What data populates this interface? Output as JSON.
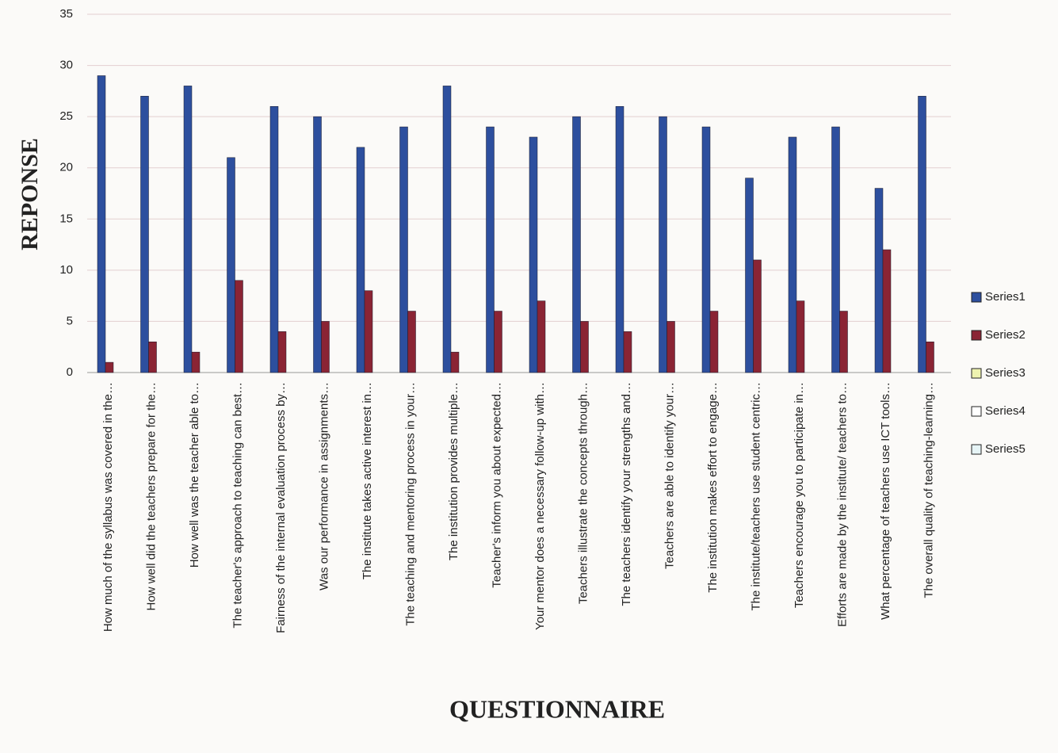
{
  "chart_data": {
    "type": "bar",
    "xlabel": "QUESTIONNAIRE",
    "ylabel": "REPONSE",
    "categories": [
      "How much of the syllabus was covered in the…",
      "How well did the teachers prepare for the…",
      "How well was the teacher able to…",
      "The teacher's approach to teaching can best…",
      "Fairness of the internal evaluation process by…",
      "Was our performance in assignments…",
      "The institute takes active interest in…",
      "The teaching and mentoring process in your…",
      "The institution provides multiple…",
      "Teacher's inform you about expected…",
      "Your mentor does a necessary follow-up with…",
      "Teachers illustrate the concepts through…",
      "The teachers identify your strengths and…",
      "Teachers are able to identify your…",
      "The institution makes effort to engage…",
      "The institute/teachers use student centric…",
      "Teachers encourage you to participate in…",
      "Efforts are made by the institute/ teachers to…",
      "What percentage of teachers use ICT tools…",
      "The overall quality of teaching-learning…"
    ],
    "series": [
      {
        "name": "Series1",
        "color": "#2d4f9e",
        "values": [
          29,
          27,
          28,
          21,
          26,
          25,
          22,
          24,
          28,
          24,
          23,
          25,
          26,
          25,
          24,
          19,
          23,
          24,
          18,
          27
        ]
      },
      {
        "name": "Series2",
        "color": "#8a2434",
        "values": [
          1,
          3,
          2,
          9,
          4,
          5,
          8,
          6,
          2,
          6,
          7,
          5,
          4,
          5,
          6,
          11,
          7,
          6,
          12,
          3
        ]
      },
      {
        "name": "Series3",
        "color": "#eef3b0",
        "values": [
          null,
          null,
          null,
          null,
          null,
          null,
          null,
          null,
          null,
          null,
          null,
          null,
          null,
          null,
          null,
          null,
          null,
          null,
          null,
          null
        ]
      },
      {
        "name": "Series4",
        "color": "#ffffff",
        "values": [
          null,
          null,
          null,
          null,
          null,
          null,
          null,
          null,
          null,
          null,
          null,
          null,
          null,
          null,
          null,
          null,
          null,
          null,
          null,
          null
        ]
      },
      {
        "name": "Series5",
        "color": "#e6f4f6",
        "values": [
          null,
          null,
          null,
          null,
          null,
          null,
          null,
          null,
          null,
          null,
          null,
          null,
          null,
          null,
          null,
          null,
          null,
          null,
          null,
          null
        ]
      }
    ],
    "ylim": [
      0,
      35
    ],
    "yticks": [
      0,
      5,
      10,
      15,
      20,
      25,
      30,
      35
    ],
    "grid": true,
    "legend": "right"
  }
}
